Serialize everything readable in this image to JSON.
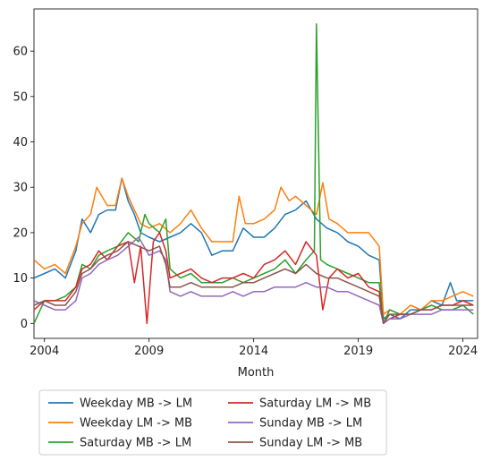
{
  "chart_data": {
    "type": "line",
    "title": "",
    "xlabel": "Month",
    "ylabel": "",
    "xlim": [
      2003.5,
      2024.7
    ],
    "ylim": [
      -3.3,
      69.3
    ],
    "x_ticks": [
      2004,
      2009,
      2014,
      2019,
      2024
    ],
    "x_tick_labels": [
      "2004",
      "2009",
      "2014",
      "2019",
      "2024"
    ],
    "y_ticks": [
      0,
      10,
      20,
      30,
      40,
      50,
      60
    ],
    "y_tick_labels": [
      "0",
      "10",
      "20",
      "30",
      "40",
      "50",
      "60"
    ],
    "grid": false,
    "legend_position": "below-chart",
    "legend_columns": 2,
    "series": [
      {
        "name": "Weekday MB -> LM",
        "color": "#1f77b4",
        "points": [
          [
            2003.5,
            10
          ],
          [
            2004.0,
            11
          ],
          [
            2004.5,
            12
          ],
          [
            2005.0,
            10
          ],
          [
            2005.5,
            16
          ],
          [
            2005.8,
            23
          ],
          [
            2006.2,
            20
          ],
          [
            2006.6,
            24
          ],
          [
            2007.0,
            25
          ],
          [
            2007.4,
            25
          ],
          [
            2007.7,
            32
          ],
          [
            2008.0,
            27
          ],
          [
            2008.3,
            24
          ],
          [
            2008.6,
            20
          ],
          [
            2009.0,
            19
          ],
          [
            2009.5,
            18
          ],
          [
            2010.0,
            19
          ],
          [
            2010.5,
            20
          ],
          [
            2011.0,
            22
          ],
          [
            2011.5,
            20
          ],
          [
            2012.0,
            15
          ],
          [
            2012.5,
            16
          ],
          [
            2013.0,
            16
          ],
          [
            2013.5,
            21
          ],
          [
            2014.0,
            19
          ],
          [
            2014.5,
            19
          ],
          [
            2015.0,
            21
          ],
          [
            2015.5,
            24
          ],
          [
            2016.0,
            25
          ],
          [
            2016.5,
            27
          ],
          [
            2017.0,
            23
          ],
          [
            2017.5,
            21
          ],
          [
            2018.0,
            20
          ],
          [
            2018.5,
            18
          ],
          [
            2019.0,
            17
          ],
          [
            2019.5,
            15
          ],
          [
            2020.0,
            14
          ],
          [
            2020.2,
            1
          ],
          [
            2020.5,
            2
          ],
          [
            2021.0,
            1
          ],
          [
            2021.5,
            3
          ],
          [
            2022.0,
            3
          ],
          [
            2022.5,
            5
          ],
          [
            2023.0,
            4
          ],
          [
            2023.4,
            9
          ],
          [
            2023.7,
            5
          ],
          [
            2024.0,
            5
          ],
          [
            2024.5,
            5
          ]
        ]
      },
      {
        "name": "Weekday LM -> MB",
        "color": "#ff7f0e",
        "points": [
          [
            2003.5,
            14
          ],
          [
            2004.0,
            12
          ],
          [
            2004.5,
            13
          ],
          [
            2005.0,
            11
          ],
          [
            2005.5,
            17
          ],
          [
            2005.8,
            22
          ],
          [
            2006.2,
            24
          ],
          [
            2006.5,
            30
          ],
          [
            2007.0,
            26
          ],
          [
            2007.4,
            26
          ],
          [
            2007.7,
            32
          ],
          [
            2008.0,
            28
          ],
          [
            2008.3,
            25
          ],
          [
            2008.6,
            22
          ],
          [
            2009.0,
            21
          ],
          [
            2009.5,
            22
          ],
          [
            2010.0,
            20
          ],
          [
            2010.5,
            22
          ],
          [
            2011.0,
            25
          ],
          [
            2011.5,
            21
          ],
          [
            2012.0,
            18
          ],
          [
            2012.5,
            18
          ],
          [
            2013.0,
            18
          ],
          [
            2013.3,
            28
          ],
          [
            2013.6,
            22
          ],
          [
            2014.0,
            22
          ],
          [
            2014.5,
            23
          ],
          [
            2015.0,
            25
          ],
          [
            2015.3,
            30
          ],
          [
            2015.7,
            27
          ],
          [
            2016.0,
            28
          ],
          [
            2016.5,
            26
          ],
          [
            2017.0,
            24
          ],
          [
            2017.3,
            31
          ],
          [
            2017.6,
            23
          ],
          [
            2018.0,
            22
          ],
          [
            2018.5,
            20
          ],
          [
            2019.0,
            20
          ],
          [
            2019.5,
            20
          ],
          [
            2020.0,
            17
          ],
          [
            2020.2,
            2
          ],
          [
            2020.5,
            3
          ],
          [
            2021.0,
            2
          ],
          [
            2021.5,
            4
          ],
          [
            2022.0,
            3
          ],
          [
            2022.5,
            5
          ],
          [
            2023.0,
            5
          ],
          [
            2023.5,
            6
          ],
          [
            2024.0,
            7
          ],
          [
            2024.5,
            6
          ]
        ]
      },
      {
        "name": "Saturday MB -> LM",
        "color": "#2ca02c",
        "points": [
          [
            2003.5,
            0
          ],
          [
            2004.0,
            5
          ],
          [
            2004.5,
            5
          ],
          [
            2005.0,
            6
          ],
          [
            2005.5,
            8
          ],
          [
            2005.8,
            13
          ],
          [
            2006.2,
            12
          ],
          [
            2006.6,
            15
          ],
          [
            2007.0,
            16
          ],
          [
            2007.5,
            17
          ],
          [
            2008.0,
            20
          ],
          [
            2008.5,
            18
          ],
          [
            2008.8,
            24
          ],
          [
            2009.0,
            22
          ],
          [
            2009.5,
            20
          ],
          [
            2009.8,
            23
          ],
          [
            2010.0,
            12
          ],
          [
            2010.5,
            10
          ],
          [
            2011.0,
            11
          ],
          [
            2011.5,
            9
          ],
          [
            2012.0,
            9
          ],
          [
            2012.5,
            9
          ],
          [
            2013.0,
            10
          ],
          [
            2013.5,
            9
          ],
          [
            2014.0,
            10
          ],
          [
            2014.5,
            11
          ],
          [
            2015.0,
            12
          ],
          [
            2015.5,
            14
          ],
          [
            2016.0,
            11
          ],
          [
            2016.5,
            14
          ],
          [
            2016.9,
            16
          ],
          [
            2017.0,
            66
          ],
          [
            2017.2,
            14
          ],
          [
            2017.5,
            13
          ],
          [
            2018.0,
            12
          ],
          [
            2018.5,
            11
          ],
          [
            2019.0,
            10
          ],
          [
            2019.5,
            9
          ],
          [
            2020.0,
            9
          ],
          [
            2020.2,
            0
          ],
          [
            2020.5,
            3
          ],
          [
            2021.0,
            2
          ],
          [
            2021.5,
            2
          ],
          [
            2022.0,
            3
          ],
          [
            2022.5,
            4
          ],
          [
            2023.0,
            3
          ],
          [
            2023.5,
            3
          ],
          [
            2024.0,
            4
          ],
          [
            2024.5,
            2
          ]
        ]
      },
      {
        "name": "Saturday LM -> MB",
        "color": "#d62728",
        "points": [
          [
            2003.5,
            3
          ],
          [
            2004.0,
            5
          ],
          [
            2004.5,
            5
          ],
          [
            2005.0,
            5
          ],
          [
            2005.5,
            8
          ],
          [
            2005.8,
            12
          ],
          [
            2006.2,
            13
          ],
          [
            2006.6,
            16
          ],
          [
            2007.0,
            14
          ],
          [
            2007.5,
            17
          ],
          [
            2008.0,
            18
          ],
          [
            2008.3,
            9
          ],
          [
            2008.6,
            17
          ],
          [
            2008.9,
            0
          ],
          [
            2009.2,
            18
          ],
          [
            2009.5,
            20
          ],
          [
            2009.8,
            16
          ],
          [
            2010.0,
            10
          ],
          [
            2010.5,
            11
          ],
          [
            2011.0,
            12
          ],
          [
            2011.5,
            10
          ],
          [
            2012.0,
            9
          ],
          [
            2012.5,
            10
          ],
          [
            2013.0,
            10
          ],
          [
            2013.5,
            11
          ],
          [
            2014.0,
            10
          ],
          [
            2014.5,
            13
          ],
          [
            2015.0,
            14
          ],
          [
            2015.5,
            16
          ],
          [
            2016.0,
            13
          ],
          [
            2016.5,
            18
          ],
          [
            2017.0,
            15
          ],
          [
            2017.3,
            3
          ],
          [
            2017.6,
            10
          ],
          [
            2018.0,
            12
          ],
          [
            2018.5,
            10
          ],
          [
            2019.0,
            11
          ],
          [
            2019.5,
            8
          ],
          [
            2020.0,
            7
          ],
          [
            2020.2,
            0
          ],
          [
            2020.5,
            1
          ],
          [
            2021.0,
            2
          ],
          [
            2021.5,
            2
          ],
          [
            2022.0,
            3
          ],
          [
            2022.5,
            3
          ],
          [
            2023.0,
            4
          ],
          [
            2023.5,
            4
          ],
          [
            2024.0,
            5
          ],
          [
            2024.5,
            4
          ]
        ]
      },
      {
        "name": "Sunday MB -> LM",
        "color": "#9467bd",
        "points": [
          [
            2003.5,
            5
          ],
          [
            2004.0,
            4
          ],
          [
            2004.5,
            3
          ],
          [
            2005.0,
            3
          ],
          [
            2005.5,
            5
          ],
          [
            2005.8,
            10
          ],
          [
            2006.2,
            11
          ],
          [
            2006.6,
            13
          ],
          [
            2007.0,
            14
          ],
          [
            2007.5,
            15
          ],
          [
            2008.0,
            17
          ],
          [
            2008.5,
            19
          ],
          [
            2009.0,
            15
          ],
          [
            2009.5,
            16
          ],
          [
            2009.8,
            14
          ],
          [
            2010.0,
            7
          ],
          [
            2010.5,
            6
          ],
          [
            2011.0,
            7
          ],
          [
            2011.5,
            6
          ],
          [
            2012.0,
            6
          ],
          [
            2012.5,
            6
          ],
          [
            2013.0,
            7
          ],
          [
            2013.5,
            6
          ],
          [
            2014.0,
            7
          ],
          [
            2014.5,
            7
          ],
          [
            2015.0,
            8
          ],
          [
            2015.5,
            8
          ],
          [
            2016.0,
            8
          ],
          [
            2016.5,
            9
          ],
          [
            2017.0,
            8
          ],
          [
            2017.5,
            8
          ],
          [
            2018.0,
            7
          ],
          [
            2018.5,
            7
          ],
          [
            2019.0,
            6
          ],
          [
            2019.5,
            5
          ],
          [
            2020.0,
            4
          ],
          [
            2020.2,
            0
          ],
          [
            2020.5,
            1
          ],
          [
            2021.0,
            1
          ],
          [
            2021.5,
            2
          ],
          [
            2022.0,
            2
          ],
          [
            2022.5,
            2
          ],
          [
            2023.0,
            3
          ],
          [
            2023.5,
            3
          ],
          [
            2024.0,
            3
          ],
          [
            2024.5,
            3
          ]
        ]
      },
      {
        "name": "Sunday LM -> MB",
        "color": "#8c564b",
        "points": [
          [
            2003.5,
            4
          ],
          [
            2004.0,
            5
          ],
          [
            2004.5,
            4
          ],
          [
            2005.0,
            4
          ],
          [
            2005.5,
            7
          ],
          [
            2005.8,
            11
          ],
          [
            2006.2,
            12
          ],
          [
            2006.6,
            14
          ],
          [
            2007.0,
            15
          ],
          [
            2007.5,
            16
          ],
          [
            2008.0,
            18
          ],
          [
            2008.5,
            17
          ],
          [
            2009.0,
            16
          ],
          [
            2009.5,
            17
          ],
          [
            2009.8,
            13
          ],
          [
            2010.0,
            8
          ],
          [
            2010.5,
            8
          ],
          [
            2011.0,
            9
          ],
          [
            2011.5,
            8
          ],
          [
            2012.0,
            8
          ],
          [
            2012.5,
            8
          ],
          [
            2013.0,
            8
          ],
          [
            2013.5,
            9
          ],
          [
            2014.0,
            9
          ],
          [
            2014.5,
            10
          ],
          [
            2015.0,
            11
          ],
          [
            2015.5,
            12
          ],
          [
            2016.0,
            11
          ],
          [
            2016.5,
            13
          ],
          [
            2017.0,
            11
          ],
          [
            2017.5,
            10
          ],
          [
            2018.0,
            10
          ],
          [
            2018.5,
            9
          ],
          [
            2019.0,
            8
          ],
          [
            2019.5,
            7
          ],
          [
            2020.0,
            6
          ],
          [
            2020.2,
            0
          ],
          [
            2020.5,
            2
          ],
          [
            2021.0,
            2
          ],
          [
            2021.5,
            2
          ],
          [
            2022.0,
            3
          ],
          [
            2022.5,
            3
          ],
          [
            2023.0,
            4
          ],
          [
            2023.5,
            4
          ],
          [
            2024.0,
            4
          ],
          [
            2024.5,
            4
          ]
        ]
      }
    ]
  }
}
